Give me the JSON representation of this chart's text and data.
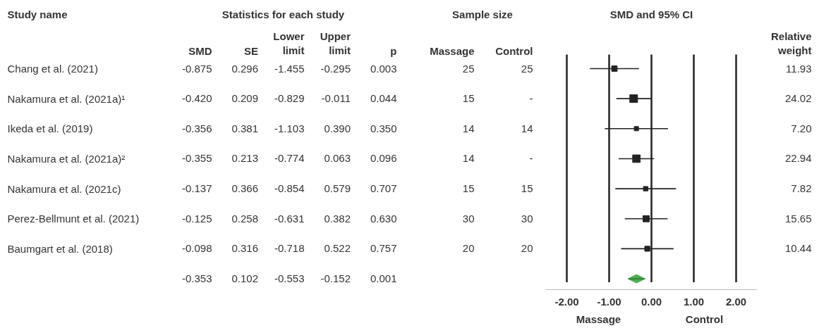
{
  "chart_data": [
    {
      "type": "other",
      "title": "Statistics for each study",
      "ylabel": "Study name",
      "categories": [
        "SMD",
        "SE",
        "Lower limit",
        "Upper limit",
        "p"
      ],
      "y_categories": [
        "Chang et al. (2021)",
        "Nakamura et al. (2021a)¹",
        "Ikeda et al. (2019)",
        "Nakamura et al. (2021a)²",
        "Nakamura et al. (2021c)",
        "Perez-Bellmunt et al. (2021)",
        "Baumgart et al. (2018)",
        null
      ],
      "cell_labels": [
        [
          "-0.875",
          "0.296",
          "-1.455",
          "-0.295",
          "0.003"
        ],
        [
          "-0.420",
          "0.209",
          "-0.829",
          "-0.011",
          "0.044"
        ],
        [
          "-0.356",
          "0.381",
          "-1.103",
          "0.390",
          "0.350"
        ],
        [
          "-0.355",
          "0.213",
          "-0.774",
          "0.063",
          "0.096"
        ],
        [
          "-0.137",
          "0.366",
          "-0.854",
          "0.579",
          "0.707"
        ],
        [
          "-0.125",
          "0.258",
          "-0.631",
          "0.382",
          "0.630"
        ],
        [
          "-0.098",
          "0.316",
          "-0.718",
          "0.522",
          "0.757"
        ],
        [
          "-0.353",
          "0.102",
          "-0.553",
          "-0.152",
          "0.001"
        ]
      ]
    },
    {
      "type": "other",
      "title": "Sample size",
      "categories": [
        "Massage",
        "Control"
      ],
      "cell_labels": [
        [
          "25",
          "25"
        ],
        [
          "15",
          "-"
        ],
        [
          "14",
          "14"
        ],
        [
          "14",
          "-"
        ],
        [
          "15",
          "15"
        ],
        [
          "30",
          "30"
        ],
        [
          "20",
          "20"
        ],
        [
          null,
          null
        ]
      ]
    },
    {
      "type": "scatter",
      "orientation": "horizontal",
      "title": "SMD and 95% CI",
      "tick_labels": "x",
      "grid": "x",
      "categories": [
        null,
        null,
        null,
        null,
        null,
        null,
        null,
        null
      ],
      "xlim": [
        -2.5,
        2.5
      ],
      "xticks": [
        {
          "value": -2,
          "label": "-2.00"
        },
        {
          "value": -1,
          "label": "-1.00"
        },
        {
          "value": 0,
          "label": "0.00"
        },
        {
          "value": 1,
          "label": "1.00"
        },
        {
          "value": 2,
          "label": "2.00"
        }
      ],
      "series": [
        {
          "type": "bubble",
          "marker": "square",
          "color": "#222222",
          "values": [
            -0.875,
            -0.42,
            -0.356,
            -0.355,
            -0.137,
            -0.125,
            -0.098,
            null
          ],
          "errors": [
            [
              -1.455,
              -0.295
            ],
            [
              -0.829,
              -0.011
            ],
            [
              -1.103,
              0.39
            ],
            [
              -0.774,
              0.063
            ],
            [
              -0.854,
              0.579
            ],
            [
              -0.631,
              0.382
            ],
            [
              -0.718,
              0.522
            ],
            null
          ],
          "sizes": [
            0.5,
            1,
            0.3,
            0.95,
            0.33,
            0.65,
            0.43,
            null
          ]
        },
        {
          "marker": "diamond",
          "color": "#4caf50",
          "values": [
            null,
            null,
            null,
            null,
            null,
            null,
            null,
            -0.353
          ],
          "errors": [
            null,
            null,
            null,
            null,
            null,
            null,
            null,
            [
              -0.553,
              -0.152
            ]
          ]
        }
      ],
      "annotations": [
        "Massage",
        "Control"
      ]
    },
    {
      "type": "other",
      "categories": [
        "Relative weight"
      ],
      "cell_labels": [
        [
          "11.93"
        ],
        [
          "24.02"
        ],
        [
          "7.20"
        ],
        [
          "22.94"
        ],
        [
          "7.82"
        ],
        [
          "15.65"
        ],
        [
          "10.44"
        ],
        [
          null
        ]
      ]
    }
  ]
}
